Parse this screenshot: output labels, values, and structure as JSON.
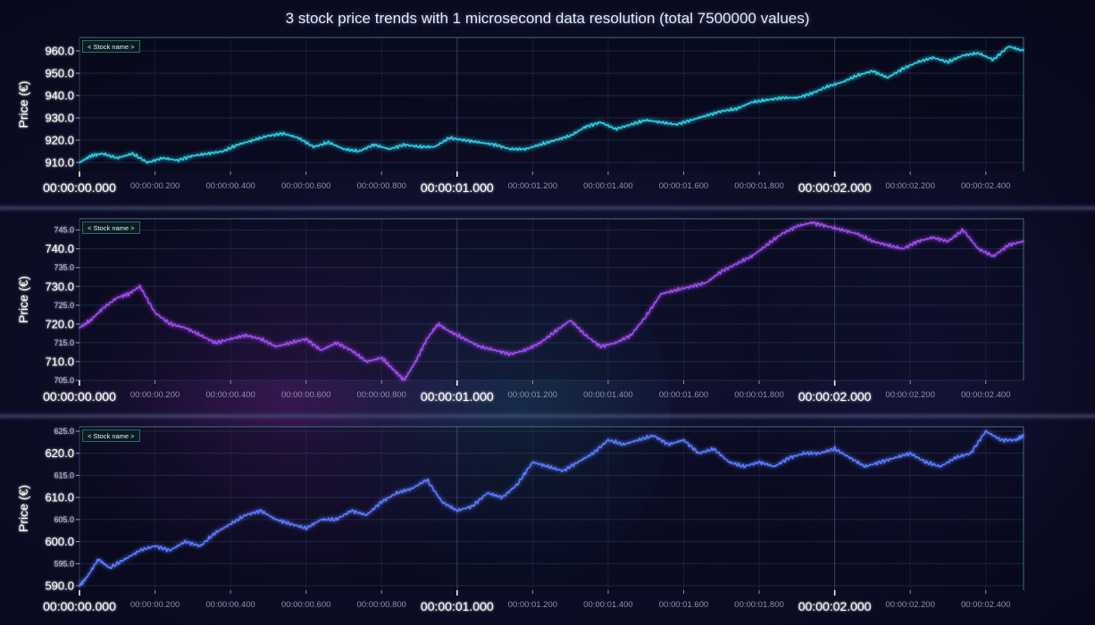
{
  "chart_title": "3 stock price trends with 1 microsecond data resolution (total 7500000 values)",
  "colors": {
    "background": "#0b0c22",
    "series": [
      "#2ad0e6",
      "#a24cf0",
      "#5a7cff"
    ],
    "major_label": "#ffffff",
    "minor_label": "#8b93aa"
  },
  "chart_data": [
    {
      "type": "line",
      "ylabel": "Price (€)",
      "legend": "< Stock name >",
      "ylim": [
        906,
        966
      ],
      "yticks": [
        {
          "value": 910,
          "label": "910.0"
        },
        {
          "value": 920,
          "label": "920.0"
        },
        {
          "value": 930,
          "label": "930.0"
        },
        {
          "value": 940,
          "label": "940.0"
        },
        {
          "value": 950,
          "label": "950.0"
        },
        {
          "value": 960,
          "label": "960.0"
        }
      ],
      "xlim": [
        0,
        2.5
      ],
      "xticks_major": [
        {
          "value": 0,
          "label": "00:00:00.000"
        },
        {
          "value": 1,
          "label": "00:00:01.000"
        },
        {
          "value": 2,
          "label": "00:00:02.000"
        }
      ],
      "xticks_minor": [
        {
          "value": 0.2,
          "label": "00:00:00.200"
        },
        {
          "value": 0.4,
          "label": "00:00:00.400"
        },
        {
          "value": 0.6,
          "label": "00:00:00.600"
        },
        {
          "value": 0.8,
          "label": "00:00:00.800"
        },
        {
          "value": 1.2,
          "label": "00:00:01.200"
        },
        {
          "value": 1.4,
          "label": "00:00:01.400"
        },
        {
          "value": 1.6,
          "label": "00:00:01.600"
        },
        {
          "value": 1.8,
          "label": "00:00:01.800"
        },
        {
          "value": 2.2,
          "label": "00:00:02.200"
        },
        {
          "value": 2.4,
          "label": "00:00:02.400"
        }
      ],
      "series": [
        {
          "x": [
            0,
            0.03,
            0.06,
            0.1,
            0.14,
            0.18,
            0.22,
            0.26,
            0.3,
            0.34,
            0.38,
            0.42,
            0.46,
            0.5,
            0.54,
            0.58,
            0.62,
            0.66,
            0.7,
            0.74,
            0.78,
            0.82,
            0.86,
            0.9,
            0.94,
            0.98,
            1.02,
            1.06,
            1.1,
            1.14,
            1.18,
            1.22,
            1.26,
            1.3,
            1.34,
            1.38,
            1.42,
            1.46,
            1.5,
            1.54,
            1.58,
            1.62,
            1.66,
            1.7,
            1.74,
            1.78,
            1.82,
            1.86,
            1.9,
            1.94,
            1.98,
            2.02,
            2.06,
            2.1,
            2.14,
            2.18,
            2.22,
            2.26,
            2.3,
            2.34,
            2.38,
            2.42,
            2.46,
            2.5
          ],
          "y": [
            910,
            913,
            914,
            912,
            914,
            910,
            912,
            911,
            913,
            914,
            915,
            918,
            920,
            922,
            923,
            921,
            917,
            919,
            916,
            915,
            918,
            916,
            918,
            917,
            917,
            921,
            920,
            919,
            918,
            916,
            916,
            918,
            920,
            922,
            926,
            928,
            925,
            927,
            929,
            928,
            927,
            929,
            931,
            933,
            934,
            937,
            938,
            939,
            939,
            941,
            944,
            946,
            949,
            951,
            948,
            952,
            955,
            957,
            955,
            958,
            959,
            956,
            962,
            960
          ]
        }
      ]
    },
    {
      "type": "line",
      "ylabel": "Price (€)",
      "legend": "< Stock name >",
      "ylim": [
        705,
        748
      ],
      "yticks": [
        {
          "value": 705,
          "label": "705.0"
        },
        {
          "value": 710,
          "label": "710.0"
        },
        {
          "value": 715,
          "label": "715.0"
        },
        {
          "value": 720,
          "label": "720.0"
        },
        {
          "value": 725,
          "label": "725.0"
        },
        {
          "value": 730,
          "label": "730.0"
        },
        {
          "value": 735,
          "label": "735.0"
        },
        {
          "value": 740,
          "label": "740.0"
        },
        {
          "value": 745,
          "label": "745.0"
        }
      ],
      "xlim": [
        0,
        2.5
      ],
      "xticks_major": [
        {
          "value": 0,
          "label": "00:00:00.000"
        },
        {
          "value": 1,
          "label": "00:00:01.000"
        },
        {
          "value": 2,
          "label": "00:00:02.000"
        }
      ],
      "xticks_minor": [
        {
          "value": 0.2,
          "label": "00:00:00.200"
        },
        {
          "value": 0.4,
          "label": "00:00:00.400"
        },
        {
          "value": 0.6,
          "label": "00:00:00.600"
        },
        {
          "value": 0.8,
          "label": "00:00:00.800"
        },
        {
          "value": 1.2,
          "label": "00:00:01.200"
        },
        {
          "value": 1.4,
          "label": "00:00:01.400"
        },
        {
          "value": 1.6,
          "label": "00:00:01.600"
        },
        {
          "value": 1.8,
          "label": "00:00:01.800"
        },
        {
          "value": 2.2,
          "label": "00:00:02.200"
        },
        {
          "value": 2.4,
          "label": "00:00:02.400"
        }
      ],
      "series": [
        {
          "x": [
            0,
            0.03,
            0.06,
            0.1,
            0.13,
            0.16,
            0.2,
            0.24,
            0.28,
            0.32,
            0.36,
            0.4,
            0.44,
            0.48,
            0.52,
            0.56,
            0.6,
            0.64,
            0.68,
            0.72,
            0.76,
            0.8,
            0.83,
            0.86,
            0.89,
            0.92,
            0.95,
            0.98,
            1.02,
            1.06,
            1.1,
            1.14,
            1.18,
            1.22,
            1.26,
            1.3,
            1.34,
            1.38,
            1.42,
            1.46,
            1.5,
            1.54,
            1.58,
            1.62,
            1.66,
            1.7,
            1.74,
            1.78,
            1.82,
            1.86,
            1.9,
            1.94,
            1.98,
            2.02,
            2.06,
            2.1,
            2.14,
            2.18,
            2.22,
            2.26,
            2.3,
            2.34,
            2.38,
            2.42,
            2.46,
            2.5
          ],
          "y": [
            719,
            721,
            724,
            727,
            728,
            730,
            723,
            720,
            719,
            717,
            715,
            716,
            717,
            716,
            714,
            715,
            716,
            713,
            715,
            713,
            710,
            711,
            708,
            705,
            710,
            716,
            720,
            718,
            716,
            714,
            713,
            712,
            713,
            715,
            718,
            721,
            717,
            714,
            715,
            717,
            722,
            728,
            729,
            730,
            731,
            734,
            736,
            738,
            741,
            744,
            746,
            747,
            746,
            745,
            744,
            742,
            741,
            740,
            742,
            743,
            742,
            745,
            740,
            738,
            741,
            742
          ]
        }
      ]
    },
    {
      "type": "line",
      "ylabel": "Price (€)",
      "legend": "< Stock name >",
      "ylim": [
        589,
        626
      ],
      "yticks": [
        {
          "value": 590,
          "label": "590.0"
        },
        {
          "value": 595,
          "label": "595.0"
        },
        {
          "value": 600,
          "label": "600.0"
        },
        {
          "value": 605,
          "label": "605.0"
        },
        {
          "value": 610,
          "label": "610.0"
        },
        {
          "value": 615,
          "label": "615.0"
        },
        {
          "value": 620,
          "label": "620.0"
        },
        {
          "value": 625,
          "label": "625.0"
        }
      ],
      "xlim": [
        0,
        2.5
      ],
      "xticks_major": [
        {
          "value": 0,
          "label": "00:00:00.000"
        },
        {
          "value": 1,
          "label": "00:00:01.000"
        },
        {
          "value": 2,
          "label": "00:00:02.000"
        }
      ],
      "xticks_minor": [
        {
          "value": 0.2,
          "label": "00:00:00.200"
        },
        {
          "value": 0.4,
          "label": "00:00:00.400"
        },
        {
          "value": 0.6,
          "label": "00:00:00.600"
        },
        {
          "value": 0.8,
          "label": "00:00:00.800"
        },
        {
          "value": 1.2,
          "label": "00:00:01.200"
        },
        {
          "value": 1.4,
          "label": "00:00:01.400"
        },
        {
          "value": 1.6,
          "label": "00:00:01.600"
        },
        {
          "value": 1.8,
          "label": "00:00:01.800"
        },
        {
          "value": 2.2,
          "label": "00:00:02.200"
        },
        {
          "value": 2.4,
          "label": "00:00:02.400"
        }
      ],
      "series": [
        {
          "x": [
            0,
            0.02,
            0.05,
            0.08,
            0.12,
            0.16,
            0.2,
            0.24,
            0.28,
            0.32,
            0.36,
            0.4,
            0.44,
            0.48,
            0.52,
            0.56,
            0.6,
            0.64,
            0.68,
            0.72,
            0.76,
            0.8,
            0.84,
            0.88,
            0.92,
            0.96,
            1.0,
            1.04,
            1.08,
            1.12,
            1.16,
            1.2,
            1.24,
            1.28,
            1.32,
            1.36,
            1.4,
            1.44,
            1.48,
            1.52,
            1.56,
            1.6,
            1.64,
            1.68,
            1.72,
            1.76,
            1.8,
            1.84,
            1.88,
            1.92,
            1.96,
            2.0,
            2.04,
            2.08,
            2.12,
            2.16,
            2.2,
            2.24,
            2.28,
            2.32,
            2.36,
            2.4,
            2.44,
            2.48,
            2.5
          ],
          "y": [
            590,
            592,
            596,
            594,
            596,
            598,
            599,
            598,
            600,
            599,
            602,
            604,
            606,
            607,
            605,
            604,
            603,
            605,
            605,
            607,
            606,
            609,
            611,
            612,
            614,
            609,
            607,
            608,
            611,
            610,
            613,
            618,
            617,
            616,
            618,
            620,
            623,
            622,
            623,
            624,
            622,
            623,
            620,
            621,
            618,
            617,
            618,
            617,
            619,
            620,
            620,
            621,
            619,
            617,
            618,
            619,
            620,
            618,
            617,
            619,
            620,
            625,
            623,
            623,
            624
          ]
        }
      ]
    }
  ]
}
